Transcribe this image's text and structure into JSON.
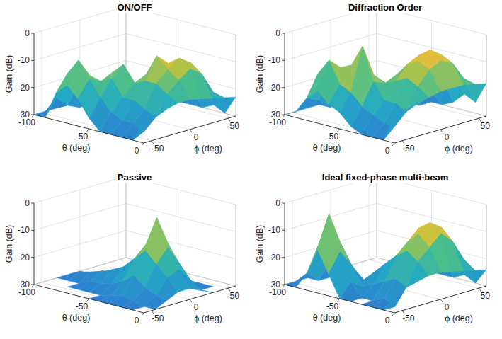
{
  "chart_data": [
    {
      "type": "surface",
      "title": "ON/OFF",
      "x_label": "θ (deg)",
      "y_label": "ϕ (deg)",
      "z_label": "Gain (dB)",
      "x": [
        -100,
        -90,
        -80,
        -70,
        -60,
        -50,
        -40,
        -30,
        -20,
        -10,
        0
      ],
      "y": [
        -60,
        -45,
        -30,
        -15,
        0,
        15,
        30,
        45,
        60
      ],
      "values": [
        [
          -30,
          -30,
          -30,
          -30,
          -30,
          -30,
          -30,
          -30,
          -30
        ],
        [
          -30,
          -24,
          -28,
          -30,
          -30,
          -30,
          -30,
          -30,
          -30
        ],
        [
          -20,
          -14,
          -18,
          -26,
          -30,
          -30,
          -30,
          -30,
          -30
        ],
        [
          -16,
          -8,
          -15,
          -20,
          -28,
          -30,
          -30,
          -30,
          -30
        ],
        [
          -20,
          -14,
          -16,
          -14,
          -22,
          -30,
          -30,
          -30,
          -30
        ],
        [
          -26,
          -20,
          -14,
          -10,
          -18,
          -24,
          -28,
          -30,
          -30
        ],
        [
          -30,
          -24,
          -20,
          -16,
          -14,
          -15,
          -20,
          -26,
          -30
        ],
        [
          -30,
          -26,
          -20,
          -14,
          -6,
          -10,
          -14,
          -22,
          -30
        ],
        [
          -30,
          -26,
          -22,
          -14,
          -10,
          -7,
          -10,
          -18,
          -28
        ],
        [
          -30,
          -28,
          -24,
          -17,
          -13,
          -10,
          -13,
          -21,
          -30
        ],
        [
          -22,
          -21,
          -20,
          -19,
          -19,
          -20,
          -21,
          -22,
          -23
        ]
      ],
      "xlim": [
        -100,
        0
      ],
      "ylim": [
        -60,
        60
      ],
      "zlim": [
        -30,
        0
      ],
      "xticks": [
        -100,
        -50,
        0
      ],
      "yticks": [
        -50,
        0,
        50
      ],
      "zticks": [
        -30,
        -20,
        -10,
        0
      ],
      "grid": true
    },
    {
      "type": "surface",
      "title": "Diffraction Order",
      "x_label": "θ (deg)",
      "y_label": "ϕ (deg)",
      "z_label": "Gain (dB)",
      "x": [
        -100,
        -90,
        -80,
        -70,
        -60,
        -50,
        -40,
        -30,
        -20,
        -10,
        0
      ],
      "y": [
        -60,
        -45,
        -30,
        -15,
        0,
        15,
        30,
        45,
        60
      ],
      "values": [
        [
          -30,
          -30,
          -30,
          -30,
          -30,
          -30,
          -30,
          -30,
          -30
        ],
        [
          -28,
          -24,
          -26,
          -30,
          -30,
          -30,
          -30,
          -30,
          -30
        ],
        [
          -22,
          -14,
          -16,
          -22,
          -30,
          -30,
          -30,
          -30,
          -30
        ],
        [
          -18,
          -8,
          -12,
          -16,
          -24,
          -30,
          -30,
          -30,
          -30
        ],
        [
          -22,
          -16,
          -10,
          -12,
          -20,
          -28,
          -30,
          -30,
          -30
        ],
        [
          -24,
          -18,
          -2,
          -14,
          -18,
          -24,
          -28,
          -30,
          -30
        ],
        [
          -28,
          -22,
          -14,
          -16,
          -14,
          -12,
          -16,
          -24,
          -30
        ],
        [
          -30,
          -24,
          -20,
          -14,
          -9,
          -7,
          -10,
          -18,
          -28
        ],
        [
          -30,
          -26,
          -20,
          -12,
          -7,
          -4,
          -7,
          -14,
          -24
        ],
        [
          -30,
          -26,
          -22,
          -14,
          -9,
          -7,
          -9,
          -16,
          -26
        ],
        [
          -20,
          -19,
          -18,
          -17,
          -16,
          -16,
          -16,
          -17,
          -18
        ]
      ],
      "xlim": [
        -100,
        0
      ],
      "ylim": [
        -60,
        60
      ],
      "zlim": [
        -30,
        0
      ],
      "xticks": [
        -100,
        -50,
        0
      ],
      "yticks": [
        -50,
        0,
        50
      ],
      "zticks": [
        -30,
        -20,
        -10,
        0
      ],
      "grid": true
    },
    {
      "type": "surface",
      "title": "Passive",
      "x_label": "θ (deg)",
      "y_label": "ϕ (deg)",
      "z_label": "Gain (dB)",
      "x": [
        -100,
        -90,
        -80,
        -70,
        -60,
        -50,
        -40,
        -30,
        -20,
        -10,
        0
      ],
      "y": [
        -60,
        -45,
        -30,
        -15,
        0,
        15,
        30,
        45,
        60
      ],
      "values": [
        [
          -30,
          -30,
          -30,
          -30,
          -30,
          -30,
          -30,
          -30,
          -30
        ],
        [
          -30,
          -30,
          -30,
          -28,
          -30,
          -30,
          -30,
          -30,
          -30
        ],
        [
          -30,
          -30,
          -30,
          -27,
          -28,
          -30,
          -30,
          -30,
          -30
        ],
        [
          -30,
          -30,
          -28,
          -26,
          -27,
          -30,
          -30,
          -30,
          -30
        ],
        [
          -30,
          -30,
          -28,
          -24,
          -26,
          -30,
          -30,
          -30,
          -30
        ],
        [
          -30,
          -30,
          -27,
          -22,
          -20,
          -28,
          -30,
          -30,
          -30
        ],
        [
          -30,
          -29,
          -25,
          -18,
          -14,
          -22,
          -30,
          -30,
          -30
        ],
        [
          -30,
          -28,
          -22,
          -14,
          -3,
          -14,
          -24,
          -30,
          -30
        ],
        [
          -30,
          -29,
          -25,
          -18,
          -13,
          -20,
          -28,
          -30,
          -30
        ],
        [
          -30,
          -30,
          -27,
          -22,
          -20,
          -25,
          -30,
          -30,
          -30
        ],
        [
          -30,
          -30,
          -28,
          -26,
          -26,
          -28,
          -30,
          -30,
          -30
        ]
      ],
      "xlim": [
        -100,
        0
      ],
      "ylim": [
        -60,
        60
      ],
      "zlim": [
        -30,
        0
      ],
      "xticks": [
        -100,
        -50,
        0
      ],
      "yticks": [
        -50,
        0,
        50
      ],
      "zticks": [
        -30,
        -20,
        -10,
        0
      ],
      "grid": true
    },
    {
      "type": "surface",
      "title": "Ideal fixed-phase multi-beam",
      "x_label": "θ (deg)",
      "y_label": "ϕ (deg)",
      "z_label": "Gain (dB)",
      "x": [
        -100,
        -90,
        -80,
        -70,
        -60,
        -50,
        -40,
        -30,
        -20,
        -10,
        0
      ],
      "y": [
        -60,
        -45,
        -30,
        -15,
        0,
        15,
        30,
        45,
        60
      ],
      "values": [
        [
          -30,
          -30,
          -30,
          -30,
          -30,
          -30,
          -30,
          -30,
          -30
        ],
        [
          -30,
          -26,
          -30,
          -30,
          -30,
          -30,
          -30,
          -30,
          -30
        ],
        [
          -24,
          -15,
          -22,
          -30,
          -30,
          -30,
          -30,
          -30,
          -30
        ],
        [
          -14,
          -2,
          -14,
          -24,
          -30,
          -30,
          -30,
          -30,
          -30
        ],
        [
          -22,
          -15,
          -21,
          -28,
          -30,
          -30,
          -30,
          -30,
          -30
        ],
        [
          -30,
          -25,
          -28,
          -24,
          -22,
          -24,
          -28,
          -30,
          -30
        ],
        [
          -30,
          -30,
          -26,
          -20,
          -18,
          -17,
          -20,
          -26,
          -30
        ],
        [
          -30,
          -30,
          -24,
          -16,
          -12,
          -8,
          -12,
          -20,
          -30
        ],
        [
          -30,
          -28,
          -22,
          -13,
          -8,
          -5,
          -8,
          -16,
          -28
        ],
        [
          -30,
          -30,
          -24,
          -16,
          -12,
          -8,
          -12,
          -20,
          -30
        ],
        [
          -24,
          -22,
          -21,
          -20,
          -20,
          -21,
          -22,
          -23,
          -24
        ]
      ],
      "xlim": [
        -100,
        0
      ],
      "ylim": [
        -60,
        60
      ],
      "zlim": [
        -30,
        0
      ],
      "xticks": [
        -100,
        -50,
        0
      ],
      "yticks": [
        -50,
        0,
        50
      ],
      "zticks": [
        -30,
        -20,
        -10,
        0
      ],
      "grid": true
    }
  ]
}
